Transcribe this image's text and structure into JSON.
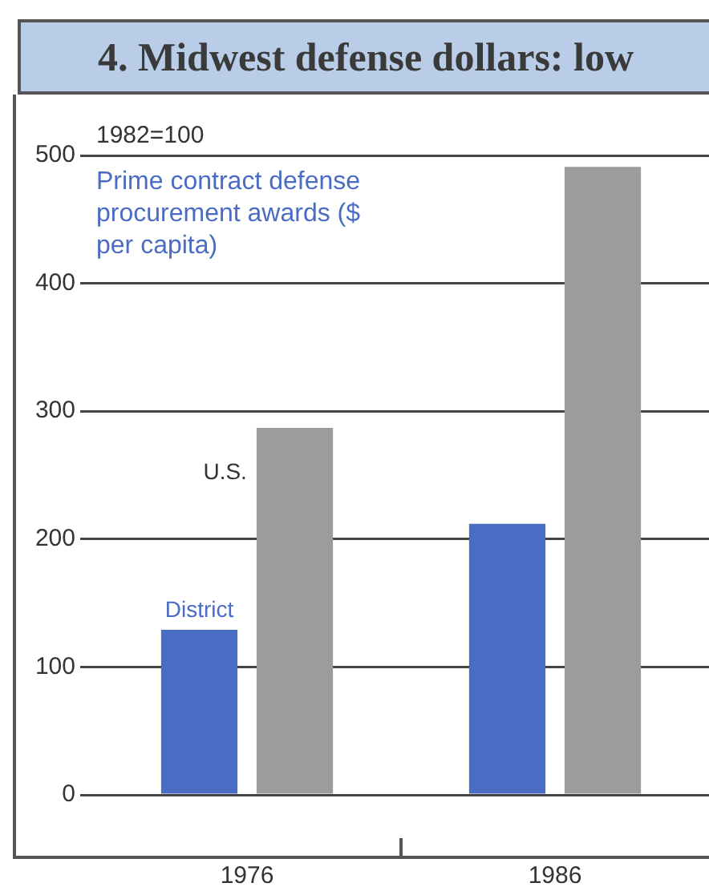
{
  "chart_data": {
    "type": "bar",
    "title": "4. Midwest defense dollars: low",
    "ylabel": "Prime contract defense procurement awards ($ per capita)",
    "annotations": [
      "1982=100"
    ],
    "categories": [
      "1976",
      "1986"
    ],
    "series": [
      {
        "name": "District",
        "color": "#4a6cc4",
        "values": [
          129,
          212
        ]
      },
      {
        "name": "U.S.",
        "color": "#9c9c9c",
        "values": [
          287,
          491
        ]
      }
    ],
    "ylim": [
      0,
      500
    ],
    "yticks": [
      0,
      100,
      200,
      300,
      400,
      500
    ],
    "grid": "y",
    "legend": false
  }
}
